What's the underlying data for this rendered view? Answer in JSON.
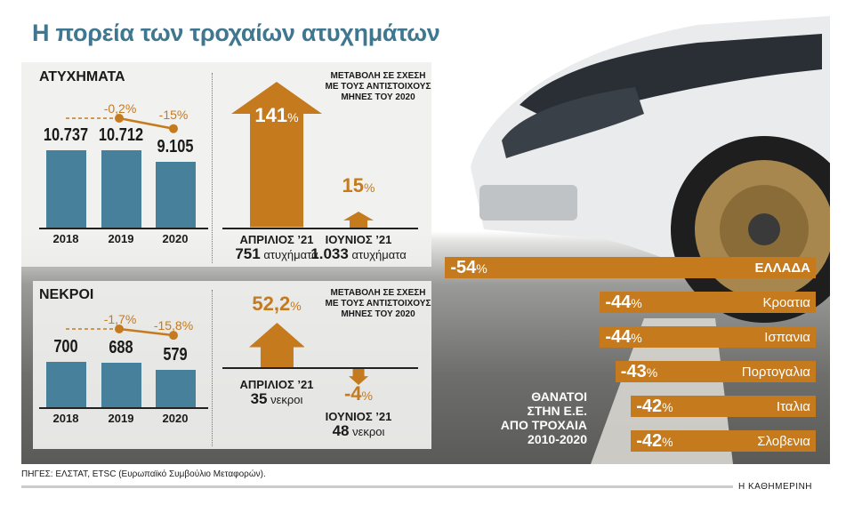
{
  "title": "Η πορεία των τροχαίων ατυχημάτων",
  "colors": {
    "accent": "#c57a1e",
    "bar": "#46809a",
    "title": "#3f7690"
  },
  "chart_data": [
    {
      "type": "bar",
      "title": "ΑΤΥΧΗΜΑΤΑ",
      "categories": [
        "2018",
        "2019",
        "2020"
      ],
      "values": [
        10737,
        10712,
        9105
      ],
      "value_labels": [
        "10.737",
        "10.712",
        "9.105"
      ],
      "changes": [
        "-0,2%",
        "-15%"
      ]
    },
    {
      "type": "bar",
      "title": "ΜΕΤΑΒΟΛΗ ΣΕ ΣΧΕΣΗ ΜΕ ΤΟΥΣ ΑΝΤΙΣΤΟΙΧΟΥΣ ΜΗΝΕΣ ΤΟΥ 2020",
      "categories": [
        "ΑΠΡΙΛΙΟΣ ’21",
        "ΙΟΥΝΙΟΣ ’21"
      ],
      "values": [
        141,
        15
      ],
      "value_labels": [
        "141",
        "15"
      ],
      "unit": "%",
      "counts": [
        "751",
        "1.033"
      ],
      "count_unit": "ατυχήματα"
    },
    {
      "type": "bar",
      "title": "ΝΕΚΡΟΙ",
      "categories": [
        "2018",
        "2019",
        "2020"
      ],
      "values": [
        700,
        688,
        579
      ],
      "value_labels": [
        "700",
        "688",
        "579"
      ],
      "changes": [
        "-1,7%",
        "-15,8%"
      ]
    },
    {
      "type": "bar",
      "title": "ΜΕΤΑΒΟΛΗ ΣΕ ΣΧΕΣΗ ΜΕ ΤΟΥΣ ΑΝΤΙΣΤΟΙΧΟΥΣ ΜΗΝΕΣ ΤΟΥ 2020",
      "categories": [
        "ΑΠΡΙΛΙΟΣ ’21",
        "ΙΟΥΝΙΟΣ ’21"
      ],
      "values": [
        52.2,
        -4
      ],
      "value_labels": [
        "52,2",
        "-4"
      ],
      "unit": "%",
      "counts": [
        "35",
        "48"
      ],
      "count_unit": "νεκροι"
    },
    {
      "type": "bar",
      "orientation": "horizontal",
      "title": "ΘΑΝΑΤΟΙ ΣΤΗΝ Ε.Ε. ΑΠΟ ΤΡΟΧΑΙΑ 2010-2020",
      "categories": [
        "ΕΛΛΑΔΑ",
        "Κροατια",
        "Ισπανια",
        "Πορτογαλια",
        "Ιταλια",
        "Σλοβενια"
      ],
      "values": [
        -54,
        -44,
        -44,
        -43,
        -42,
        -42
      ],
      "value_labels": [
        "-54",
        "-44",
        "-44",
        "-43",
        "-42",
        "-42"
      ],
      "unit": "%"
    }
  ],
  "source": "ΠΗΓΕΣ: ΕΛΣΤΑΤ, ETSC (Ευρωπαϊκό Συμβούλιο Μεταφορών).",
  "brand": "Η ΚΑΘΗΜΕΡΙΝΗ"
}
